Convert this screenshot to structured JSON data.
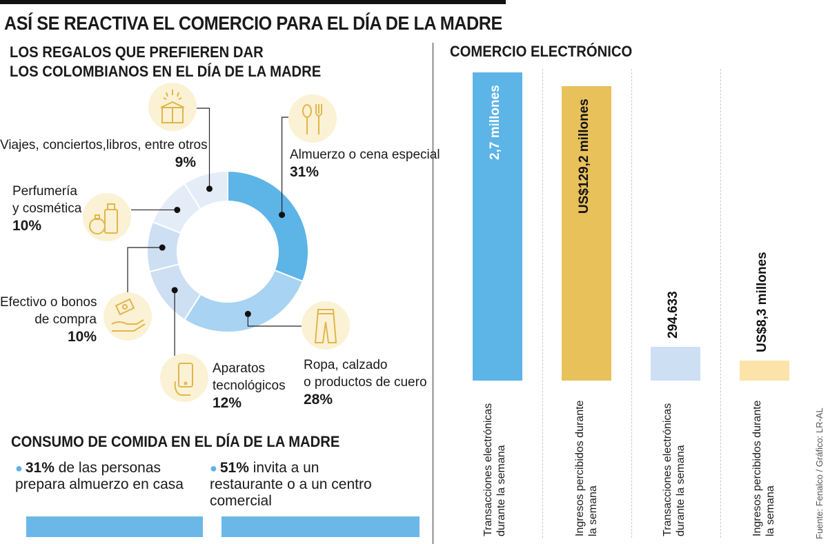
{
  "title": "ASÍ SE REACTIVA EL COMERCIO PARA EL DÍA DE LA MADRE",
  "gifts": {
    "title_line1": "LOS REGALOS QUE PREFIEREN DAR",
    "title_line2": "LOS COLOMBIANOS EN EL DÍA DE LA MADRE",
    "items": [
      {
        "label1": "Almuerzo o cena especial",
        "label2": "",
        "pct_text": "31%",
        "icon": "utensils-icon"
      },
      {
        "label1": "Ropa, calzado",
        "label2": "o productos de cuero",
        "pct_text": "28%",
        "icon": "pants-icon"
      },
      {
        "label1": "Aparatos",
        "label2": "tecnológicos",
        "pct_text": "12%",
        "icon": "phone-icon"
      },
      {
        "label1": "Efectivo o bonos",
        "label2": "de compra",
        "pct_text": "10%",
        "icon": "cash-icon"
      },
      {
        "label1": "Perfumería",
        "label2": "y cosmética",
        "pct_text": "10%",
        "icon": "perfume-icon"
      },
      {
        "label1": "Viajes, conciertos,libros, entre otros",
        "label2": "",
        "pct_text": "9%",
        "icon": "gift-box-icon"
      }
    ]
  },
  "ecommerce": {
    "title": "COMERCIO ELECTRÓNICO",
    "bars": [
      {
        "value_text": "2,7 millones",
        "axis1": "Transacciones electrónicas",
        "axis2": "durante la semana"
      },
      {
        "value_text": "US$129,2 millones",
        "axis1": "Ingresos percibidos durante",
        "axis2": "la semana"
      },
      {
        "value_text": "294.633",
        "axis1": "Transacciones electrónicas",
        "axis2": "durante la semana"
      },
      {
        "value_text": "US$8,3 millones",
        "axis1": "Ingresos percibidos durante",
        "axis2": "la semana"
      }
    ]
  },
  "food": {
    "title": "CONSUMO DE COMIDA EN EL DÍA DE LA MADRE",
    "items": [
      {
        "pct": "31%",
        "text": " de las personas prepara almuerzo en casa"
      },
      {
        "pct": "51%",
        "text": " invita a un restaurante o a un centro comercial"
      }
    ]
  },
  "source": "Fuente: Fenalco / Gráfico: LR-AL",
  "colors": {
    "blue_dark": "#5db4e7",
    "blue_mid": "#a8d3f2",
    "blue_light": "#cddff3",
    "blue_pale": "#e4ecf7",
    "gold": "#e8c15b",
    "gold_pale": "#fbe3a9",
    "icon_bg": "#fbf1d4",
    "icon_stroke": "#e0b64a"
  },
  "chart_data": [
    {
      "type": "pie",
      "title": "LOS REGALOS QUE PREFIEREN DAR LOS COLOMBIANOS EN EL DÍA DE LA MADRE",
      "categories": [
        "Almuerzo o cena especial",
        "Ropa, calzado o productos de cuero",
        "Aparatos tecnológicos",
        "Efectivo o bonos de compra",
        "Perfumería y cosmética",
        "Viajes, conciertos,libros, entre otros"
      ],
      "values": [
        31,
        28,
        12,
        10,
        10,
        9
      ],
      "unit": "%",
      "style": "donut"
    },
    {
      "type": "bar",
      "title": "COMERCIO ELECTRÓNICO",
      "categories": [
        "Transacciones electrónicas durante la semana",
        "Ingresos percibidos durante la semana",
        "Transacciones electrónicas durante la semana",
        "Ingresos percibidos durante la semana"
      ],
      "values": [
        2700000,
        129200000,
        294633,
        8300000
      ],
      "value_labels": [
        "2,7 millones",
        "US$129,2 millones",
        "294.633",
        "US$8,3 millones"
      ]
    },
    {
      "type": "bar",
      "title": "CONSUMO DE COMIDA EN EL DÍA DE LA MADRE",
      "categories": [
        "prepara almuerzo en casa",
        "invita a un restaurante o a un centro comercial"
      ],
      "values": [
        31,
        51
      ],
      "unit": "%"
    }
  ]
}
